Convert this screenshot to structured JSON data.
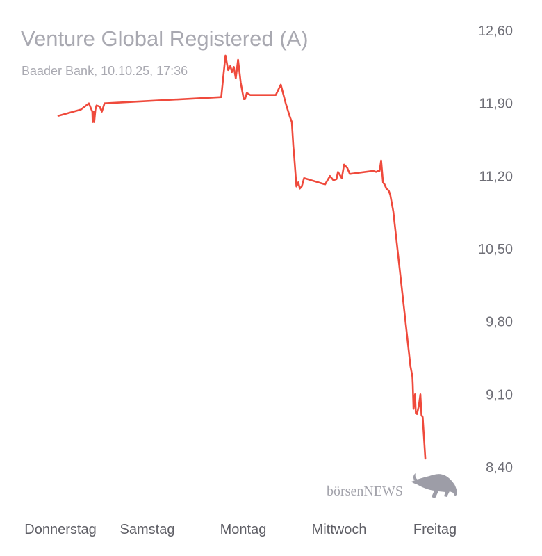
{
  "chart_data": {
    "type": "line",
    "title": "Venture Global Registered (A)",
    "subtitle": "Baader Bank, 10.10.25, 17:36",
    "ylim": [
      8.4,
      12.6
    ],
    "yticks": [
      "12,60",
      "11,90",
      "11,20",
      "10,50",
      "9,80",
      "9,10",
      "8,40"
    ],
    "ytick_values": [
      12.6,
      11.9,
      11.2,
      10.5,
      9.8,
      9.1,
      8.4
    ],
    "xticks": [
      "Donnerstag",
      "Samstag",
      "Montag",
      "Mittwoch",
      "Freitag"
    ],
    "xlim": [
      0,
      1
    ],
    "series": [
      {
        "color": "#ef4a3c",
        "points": [
          [
            0.0,
            11.78
          ],
          [
            0.059,
            11.84
          ],
          [
            0.08,
            11.9
          ],
          [
            0.089,
            11.82
          ],
          [
            0.09,
            11.72
          ],
          [
            0.093,
            11.82
          ],
          [
            0.094,
            11.72
          ],
          [
            0.097,
            11.84
          ],
          [
            0.1,
            11.88
          ],
          [
            0.108,
            11.87
          ],
          [
            0.114,
            11.82
          ],
          [
            0.121,
            11.9
          ],
          [
            0.427,
            11.96
          ],
          [
            0.438,
            12.36
          ],
          [
            0.445,
            12.22
          ],
          [
            0.451,
            12.26
          ],
          [
            0.455,
            12.2
          ],
          [
            0.46,
            12.25
          ],
          [
            0.465,
            12.14
          ],
          [
            0.471,
            12.32
          ],
          [
            0.478,
            12.1
          ],
          [
            0.486,
            11.94
          ],
          [
            0.489,
            11.94
          ],
          [
            0.494,
            12.0
          ],
          [
            0.503,
            11.98
          ],
          [
            0.57,
            11.98
          ],
          [
            0.583,
            12.08
          ],
          [
            0.596,
            11.9
          ],
          [
            0.607,
            11.77
          ],
          [
            0.612,
            11.72
          ],
          [
            0.616,
            11.48
          ],
          [
            0.618,
            11.4
          ],
          [
            0.624,
            11.1
          ],
          [
            0.629,
            11.14
          ],
          [
            0.633,
            11.08
          ],
          [
            0.638,
            11.1
          ],
          [
            0.644,
            11.18
          ],
          [
            0.699,
            11.12
          ],
          [
            0.712,
            11.2
          ],
          [
            0.721,
            11.16
          ],
          [
            0.729,
            11.17
          ],
          [
            0.733,
            11.24
          ],
          [
            0.743,
            11.18
          ],
          [
            0.749,
            11.31
          ],
          [
            0.757,
            11.28
          ],
          [
            0.764,
            11.22
          ],
          [
            0.825,
            11.25
          ],
          [
            0.833,
            11.24
          ],
          [
            0.838,
            11.25
          ],
          [
            0.842,
            11.25
          ],
          [
            0.846,
            11.35
          ],
          [
            0.851,
            11.14
          ],
          [
            0.855,
            11.12
          ],
          [
            0.86,
            11.08
          ],
          [
            0.866,
            11.06
          ],
          [
            0.87,
            11.02
          ],
          [
            0.876,
            10.9
          ],
          [
            0.878,
            10.86
          ],
          [
            0.923,
            9.37
          ],
          [
            0.928,
            9.27
          ],
          [
            0.929,
            9.2
          ],
          [
            0.931,
            8.96
          ],
          [
            0.935,
            9.1
          ],
          [
            0.937,
            8.92
          ],
          [
            0.94,
            8.91
          ],
          [
            0.945,
            8.99
          ],
          [
            0.949,
            9.1
          ],
          [
            0.952,
            8.9
          ],
          [
            0.955,
            8.88
          ],
          [
            0.962,
            8.48
          ]
        ]
      }
    ],
    "watermark": "börsenNEWS"
  }
}
